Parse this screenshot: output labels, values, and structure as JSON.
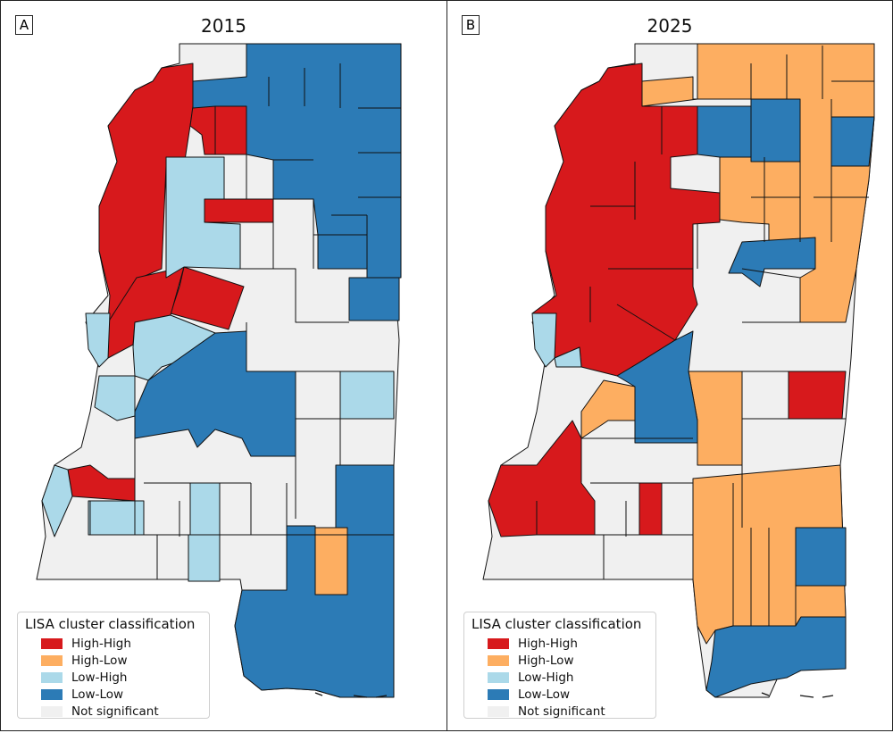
{
  "panels": [
    {
      "letter": "A",
      "title": "2015"
    },
    {
      "letter": "B",
      "title": "2025"
    }
  ],
  "legend": {
    "title": "LISA cluster classification",
    "items": [
      {
        "label": "High-High",
        "color": "#d7191c"
      },
      {
        "label": "High-Low",
        "color": "#fdae61"
      },
      {
        "label": "Low-High",
        "color": "#abd9e9"
      },
      {
        "label": "Low-Low",
        "color": "#2c7bb6"
      },
      {
        "label": "Not significant",
        "color": "#f0f0f0"
      }
    ]
  },
  "map": {
    "state": "Mississippi",
    "unit": "county",
    "colors": {
      "High-High": "#d7191c",
      "High-Low": "#fdae61",
      "Low-High": "#abd9e9",
      "Low-Low": "#2c7bb6",
      "Not significant": "#f0f0f0",
      "border": "#111111"
    }
  }
}
